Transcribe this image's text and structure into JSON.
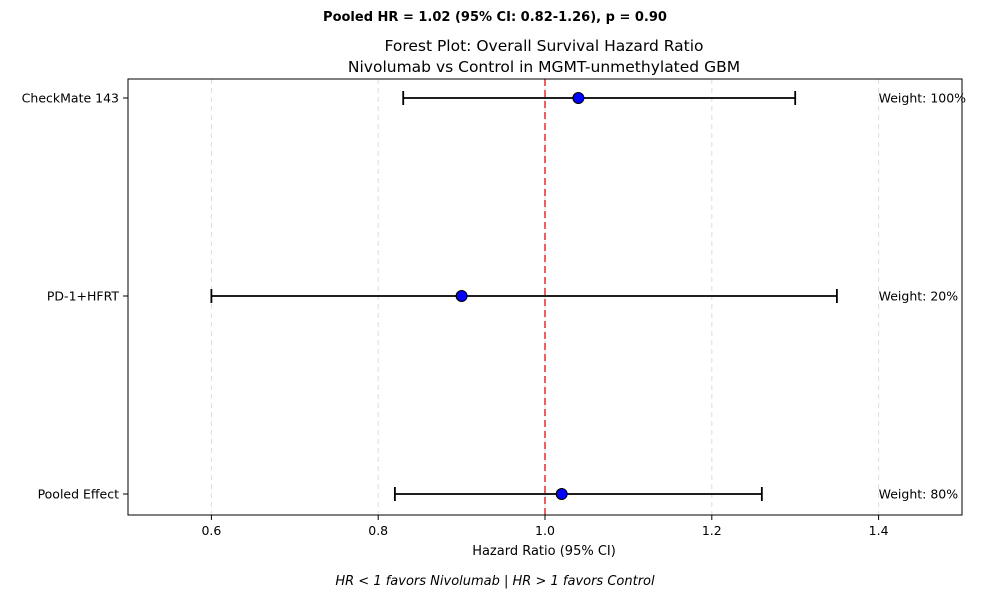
{
  "chart_data": {
    "type": "forest",
    "suptitle": "Pooled HR = 1.02 (95% CI: 0.82-1.26), p = 0.90",
    "title_line1": "Forest Plot: Overall Survival Hazard Ratio",
    "title_line2": "Nivolumab vs Control in MGMT-unmethylated GBM",
    "xlabel": "Hazard Ratio (95% CI)",
    "footnote": "HR < 1 favors Nivolumab | HR > 1 favors Control",
    "xlim": [
      0.5,
      1.5
    ],
    "xticks": [
      0.6,
      0.8,
      1.0,
      1.2,
      1.4
    ],
    "xtick_labels": [
      "0.6",
      "0.8",
      "1.0",
      "1.2",
      "1.4"
    ],
    "reference_line": 1.0,
    "grid": "vertical dashed",
    "colors": {
      "point": "#0000ff",
      "reference": "#e8393b",
      "ci": "#000000"
    },
    "studies": [
      {
        "label": "CheckMate 143",
        "hr": 1.04,
        "ci_low": 0.83,
        "ci_high": 1.3,
        "weight_label": "Weight: 100%"
      },
      {
        "label": "PD-1+HFRT",
        "hr": 0.9,
        "ci_low": 0.6,
        "ci_high": 1.35,
        "weight_label": "Weight: 20%"
      },
      {
        "label": "Pooled Effect",
        "hr": 1.02,
        "ci_low": 0.82,
        "ci_high": 1.26,
        "weight_label": "Weight: 80%"
      }
    ]
  }
}
